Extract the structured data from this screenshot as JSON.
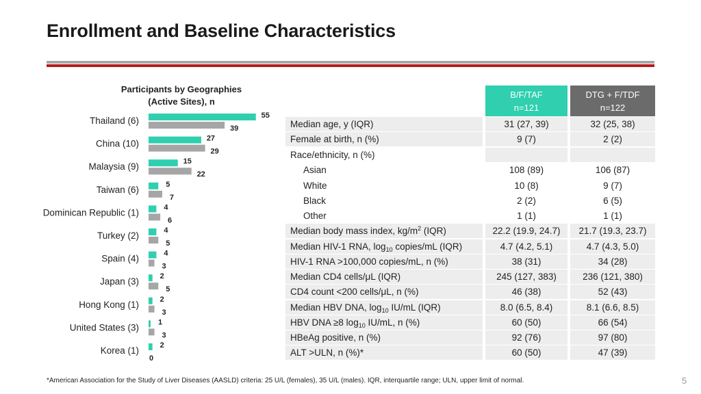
{
  "title": "Enrollment and Baseline Characteristics",
  "colors": {
    "teal": "#2fcfaf",
    "gray_bar": "#a6a6a6",
    "dark_header": "#6b6b6b",
    "rule_red": "#b31b1b"
  },
  "chart_data": {
    "type": "bar",
    "orientation": "horizontal",
    "title": "Participants by Geographies (Active Sites), n",
    "title_lines": [
      "Participants by Geographies",
      "(Active Sites), n"
    ],
    "categories": [
      "Thailand (6)",
      "China (10)",
      "Malaysia (9)",
      "Taiwan (6)",
      "Dominican Republic (1)",
      "Turkey (2)",
      "Spain (4)",
      "Japan (3)",
      "Hong Kong (1)",
      "United States (3)",
      "Korea (1)"
    ],
    "series": [
      {
        "color": "#2fcfaf",
        "values": [
          55,
          27,
          15,
          5,
          4,
          4,
          4,
          2,
          2,
          1,
          2
        ]
      },
      {
        "color": "#a6a6a6",
        "values": [
          39,
          29,
          22,
          7,
          6,
          5,
          3,
          5,
          3,
          3,
          0
        ]
      }
    ],
    "data_labels": true,
    "grid": false
  },
  "table": {
    "headers": [
      {
        "line1": "B/F/TAF",
        "line2": "n=121"
      },
      {
        "line1": "DTG + F/TDF",
        "line2": "n=122"
      }
    ],
    "rows": [
      {
        "label": "Median age, y (IQR)",
        "v1": "31 (27, 39)",
        "v2": "32 (25, 38)"
      },
      {
        "label": "Female at birth, n (%)",
        "v1": "9 (7)",
        "v2": "2 (2)"
      },
      {
        "label": "Race/ethnicity, n (%)",
        "v1": "",
        "v2": ""
      },
      {
        "label": "Asian",
        "v1": "108 (89)",
        "v2": "106 (87)"
      },
      {
        "label": "White",
        "v1": "10 (8)",
        "v2": "9 (7)"
      },
      {
        "label": "Black",
        "v1": "2 (2)",
        "v2": "6 (5)"
      },
      {
        "label": "Other",
        "v1": "1 (1)",
        "v2": "1 (1)"
      },
      {
        "label_pre": "Median body mass index, kg/m",
        "label_sup": "2",
        "label_post": " (IQR)",
        "v1": "22.2 (19.9, 24.7)",
        "v2": "21.7 (19.3, 23.7)"
      },
      {
        "label_pre": "Median HIV-1 RNA, log",
        "label_sub": "10",
        "label_post": " copies/mL (IQR)",
        "v1": "4.7 (4.2, 5.1)",
        "v2": "4.7 (4.3, 5.0)"
      },
      {
        "label": "HIV-1 RNA >100,000 copies/mL, n (%)",
        "v1": "38 (31)",
        "v2": "34 (28)"
      },
      {
        "label": "Median CD4 cells/μL (IQR)",
        "v1": "245 (127, 383)",
        "v2": "236 (121, 380)"
      },
      {
        "label": "CD4 count <200 cells/μL, n (%)",
        "v1": "46 (38)",
        "v2": "52 (43)"
      },
      {
        "label_pre": "Median HBV DNA, log",
        "label_sub": "10",
        "label_post": " IU/mL (IQR)",
        "v1": "8.0 (6.5, 8.4)",
        "v2": "8.1 (6.6, 8.5)"
      },
      {
        "label_pre": "HBV DNA ≥8 log",
        "label_sub": "10",
        "label_post": " IU/mL, n (%)",
        "v1": "60 (50)",
        "v2": "66 (54)"
      },
      {
        "label": "HBeAg positive, n (%)",
        "v1": "92 (76)",
        "v2": "97 (80)"
      },
      {
        "label": "ALT >ULN, n (%)*",
        "v1": "60 (50)",
        "v2": "47 (39)"
      }
    ]
  },
  "footnote": "*American Association for the Study of Liver Diseases (AASLD) criteria: 25 U/L (females), 35 U/L (males). IQR, interquartile range; ULN, upper limit of normal.",
  "page_number": "5"
}
